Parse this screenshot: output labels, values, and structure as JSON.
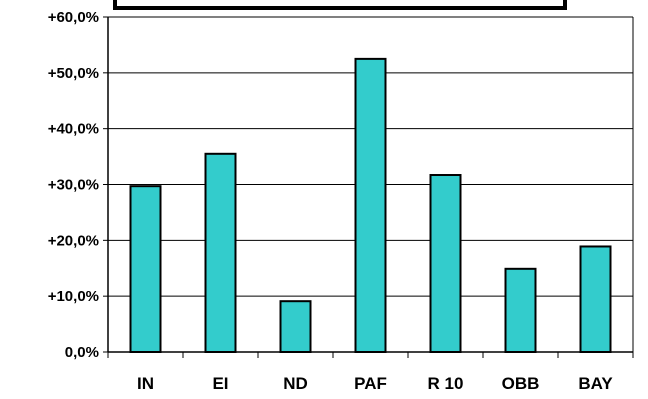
{
  "chart_data": {
    "type": "bar",
    "categories": [
      "IN",
      "EI",
      "ND",
      "PAF",
      "R 10",
      "OBB",
      "BAY"
    ],
    "values": [
      29.7,
      35.5,
      9.1,
      52.5,
      31.7,
      14.9,
      18.9
    ],
    "y_ticks": [
      {
        "value": 0,
        "label": "0,0%"
      },
      {
        "value": 10,
        "label": "+10,0%"
      },
      {
        "value": 20,
        "label": "+20,0%"
      },
      {
        "value": 30,
        "label": "+30,0%"
      },
      {
        "value": 40,
        "label": "+40,0%"
      },
      {
        "value": 50,
        "label": "+50,0%"
      },
      {
        "value": 60,
        "label": "+60,0%"
      }
    ],
    "ylim": [
      0,
      60
    ],
    "grid": true,
    "title": "",
    "xlabel": "",
    "ylabel": "",
    "colors": {
      "bar_fill": "#33CCCC",
      "bar_stroke": "#000000",
      "grid": "#000000",
      "axis": "#000000"
    }
  }
}
